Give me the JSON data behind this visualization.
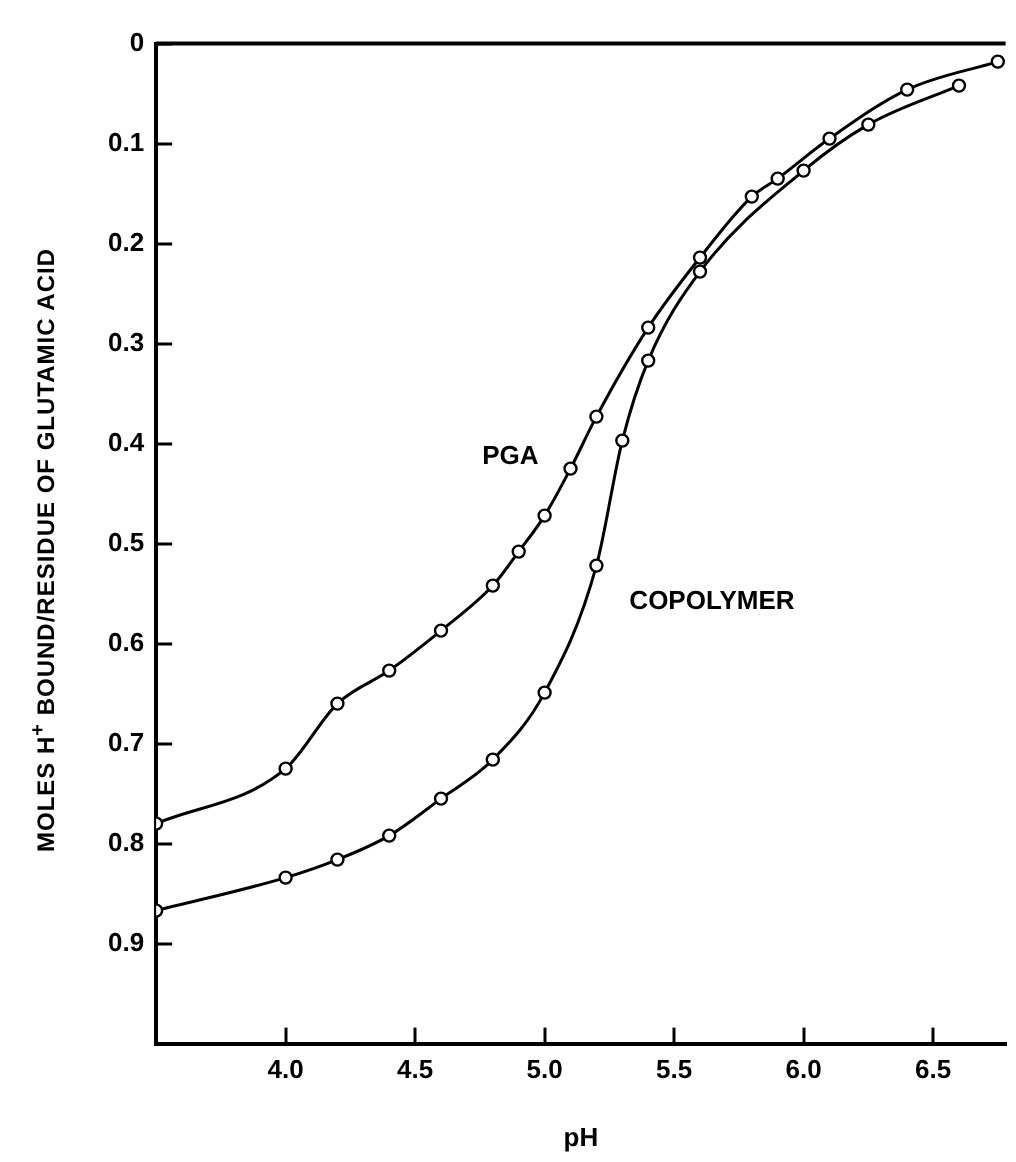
{
  "chart_data": {
    "type": "line",
    "xlabel": "pH",
    "ylabel": "MOLES H$^{+}$ BOUND/RESIDUE OF GLUTAMIC ACID",
    "xlim": [
      3.5,
      6.78
    ],
    "xticks": [
      {
        "value": 4,
        "label": "4.0"
      },
      4.5,
      {
        "value": 5,
        "label": "5.0"
      },
      5.5,
      {
        "value": 6,
        "label": "6.0"
      },
      6.5
    ],
    "ylim": [
      1,
      0
    ],
    "yticks": [
      0,
      0.1,
      0.2,
      0.3,
      0.4,
      0.5,
      0.6,
      0.7,
      0.8,
      0.9
    ],
    "grid": false,
    "legend": false,
    "marker": "circle",
    "line_style": "solid",
    "series": [
      {
        "name": "PGA",
        "color": "#000000",
        "x": [
          3.5,
          4.0,
          4.2,
          4.4,
          4.6,
          4.8,
          4.9,
          5.0,
          5.1,
          5.2,
          5.4,
          5.6,
          5.8,
          5.9,
          6.1,
          6.4,
          6.75
        ],
        "values": [
          0.78,
          0.725,
          0.66,
          0.627,
          0.587,
          0.542,
          0.508,
          0.472,
          0.425,
          0.373,
          0.284,
          0.214,
          0.153,
          0.135,
          0.095,
          0.046,
          0.018
        ]
      },
      {
        "name": "COPOLYMER",
        "color": "#000000",
        "x": [
          3.5,
          4.0,
          4.2,
          4.4,
          4.6,
          4.8,
          5.0,
          5.2,
          5.3,
          5.4,
          5.6,
          6.0,
          6.25,
          6.6
        ],
        "values": [
          0.867,
          0.834,
          0.816,
          0.792,
          0.755,
          0.716,
          0.649,
          0.522,
          0.397,
          0.317,
          0.228,
          0.127,
          0.081,
          0.042
        ]
      }
    ]
  }
}
